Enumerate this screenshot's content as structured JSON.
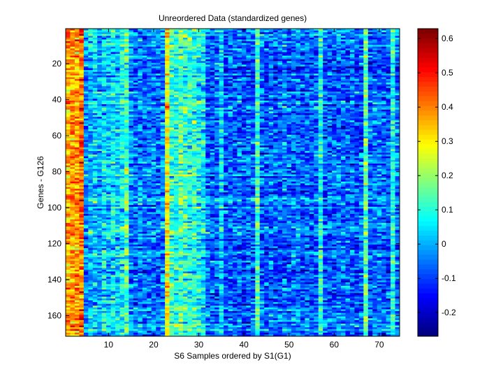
{
  "chart_data": {
    "type": "heatmap",
    "title": "Unreordered Data (standardized genes)",
    "xlabel": "S6 Samples ordered by S1(G1)",
    "ylabel": "Genes - G126",
    "n_columns": 74,
    "n_rows": 171,
    "xlim": [
      0.5,
      74.5
    ],
    "ylim": [
      0.5,
      171.5
    ],
    "x_ticks": [
      10,
      20,
      30,
      40,
      50,
      60,
      70
    ],
    "y_ticks": [
      20,
      40,
      60,
      80,
      100,
      120,
      140,
      160
    ],
    "colormap": "jet",
    "color_limits": [
      -0.269,
      0.629
    ],
    "colorbar_ticks": [
      -0.2,
      -0.1,
      0,
      0.1,
      0.2,
      0.3,
      0.4,
      0.5,
      0.6
    ],
    "colorbar_tick_labels": [
      "-0.2",
      "-0.1",
      "0",
      "0.1",
      "0.2",
      "0.3",
      "0.4",
      "0.5",
      "0.6"
    ],
    "column_mean_values": [
      0.36,
      0.38,
      0.37,
      0.42,
      -0.04,
      0.02,
      0.04,
      0.0,
      0.05,
      0.02,
      0.06,
      0.03,
      0.08,
      0.15,
      -0.02,
      -0.05,
      -0.03,
      -0.06,
      -0.04,
      -0.05,
      -0.06,
      -0.03,
      0.3,
      0.12,
      0.1,
      0.14,
      0.12,
      0.1,
      0.11,
      0.08,
      0.06,
      -0.05,
      -0.07,
      -0.06,
      0.04,
      -0.08,
      -0.06,
      -0.07,
      -0.05,
      -0.08,
      -0.06,
      -0.07,
      0.12,
      -0.06,
      -0.08,
      -0.05,
      -0.07,
      -0.06,
      -0.04,
      -0.07,
      -0.06,
      -0.05,
      -0.08,
      -0.06,
      -0.07,
      -0.05,
      0.1,
      -0.07,
      -0.06,
      -0.08,
      -0.05,
      -0.06,
      -0.07,
      -0.05,
      -0.08,
      -0.06,
      0.16,
      -0.07,
      -0.06,
      -0.05,
      -0.07,
      -0.06,
      0.1,
      -0.04
    ],
    "cell_noise_std": 0.07
  }
}
